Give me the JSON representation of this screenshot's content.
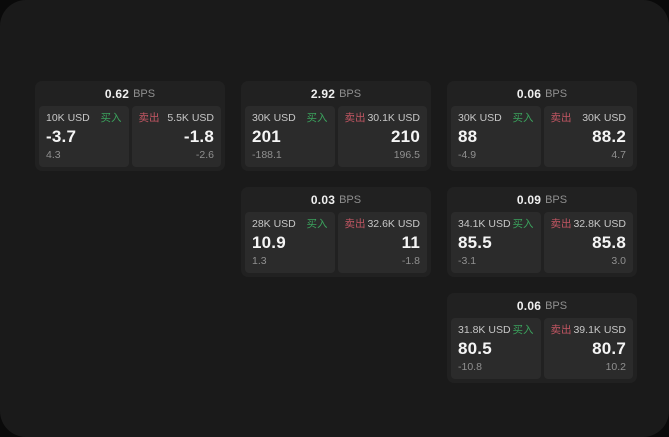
{
  "board": {
    "bps_unit": "BPS",
    "buy_label": "买入",
    "sell_label": "卖出"
  },
  "colors": {
    "page_bg": "#0a0a0a",
    "panel_bg": "#1a1a1a",
    "card_bg": "#212121",
    "tile_bg": "#2b2b2b",
    "buy_green": "#3ba35d",
    "sell_red": "#c25663",
    "text_primary": "#f5f5f5",
    "text_secondary": "#c7c7c7",
    "text_muted": "#909090"
  },
  "cards": [
    {
      "row": 1,
      "col": 1,
      "bps": "0.62",
      "buy": {
        "amount": "10K USD",
        "label": "买入",
        "price": "-3.7",
        "delta": "4.3"
      },
      "sell": {
        "label": "卖出",
        "amount": "5.5K USD",
        "price": "-1.8",
        "delta": "-2.6"
      }
    },
    {
      "row": 1,
      "col": 2,
      "bps": "2.92",
      "buy": {
        "amount": "30K USD",
        "label": "买入",
        "price": "201",
        "delta": "-188.1"
      },
      "sell": {
        "label": "卖出",
        "amount": "30.1K USD",
        "price": "210",
        "delta": "196.5"
      }
    },
    {
      "row": 1,
      "col": 3,
      "bps": "0.06",
      "buy": {
        "amount": "30K USD",
        "label": "买入",
        "price": "88",
        "delta": "-4.9"
      },
      "sell": {
        "label": "卖出",
        "amount": "30K USD",
        "price": "88.2",
        "delta": "4.7"
      }
    },
    {
      "row": 2,
      "col": 2,
      "bps": "0.03",
      "buy": {
        "amount": "28K USD",
        "label": "买入",
        "price": "10.9",
        "delta": "1.3"
      },
      "sell": {
        "label": "卖出",
        "amount": "32.6K USD",
        "price": "11",
        "delta": "-1.8"
      }
    },
    {
      "row": 2,
      "col": 3,
      "bps": "0.09",
      "buy": {
        "amount": "34.1K USD",
        "label": "买入",
        "price": "85.5",
        "delta": "-3.1"
      },
      "sell": {
        "label": "卖出",
        "amount": "32.8K USD",
        "price": "85.8",
        "delta": "3.0"
      }
    },
    {
      "row": 3,
      "col": 3,
      "bps": "0.06",
      "buy": {
        "amount": "31.8K USD",
        "label": "买入",
        "price": "80.5",
        "delta": "-10.8"
      },
      "sell": {
        "label": "卖出",
        "amount": "39.1K USD",
        "price": "80.7",
        "delta": "10.2"
      }
    }
  ]
}
